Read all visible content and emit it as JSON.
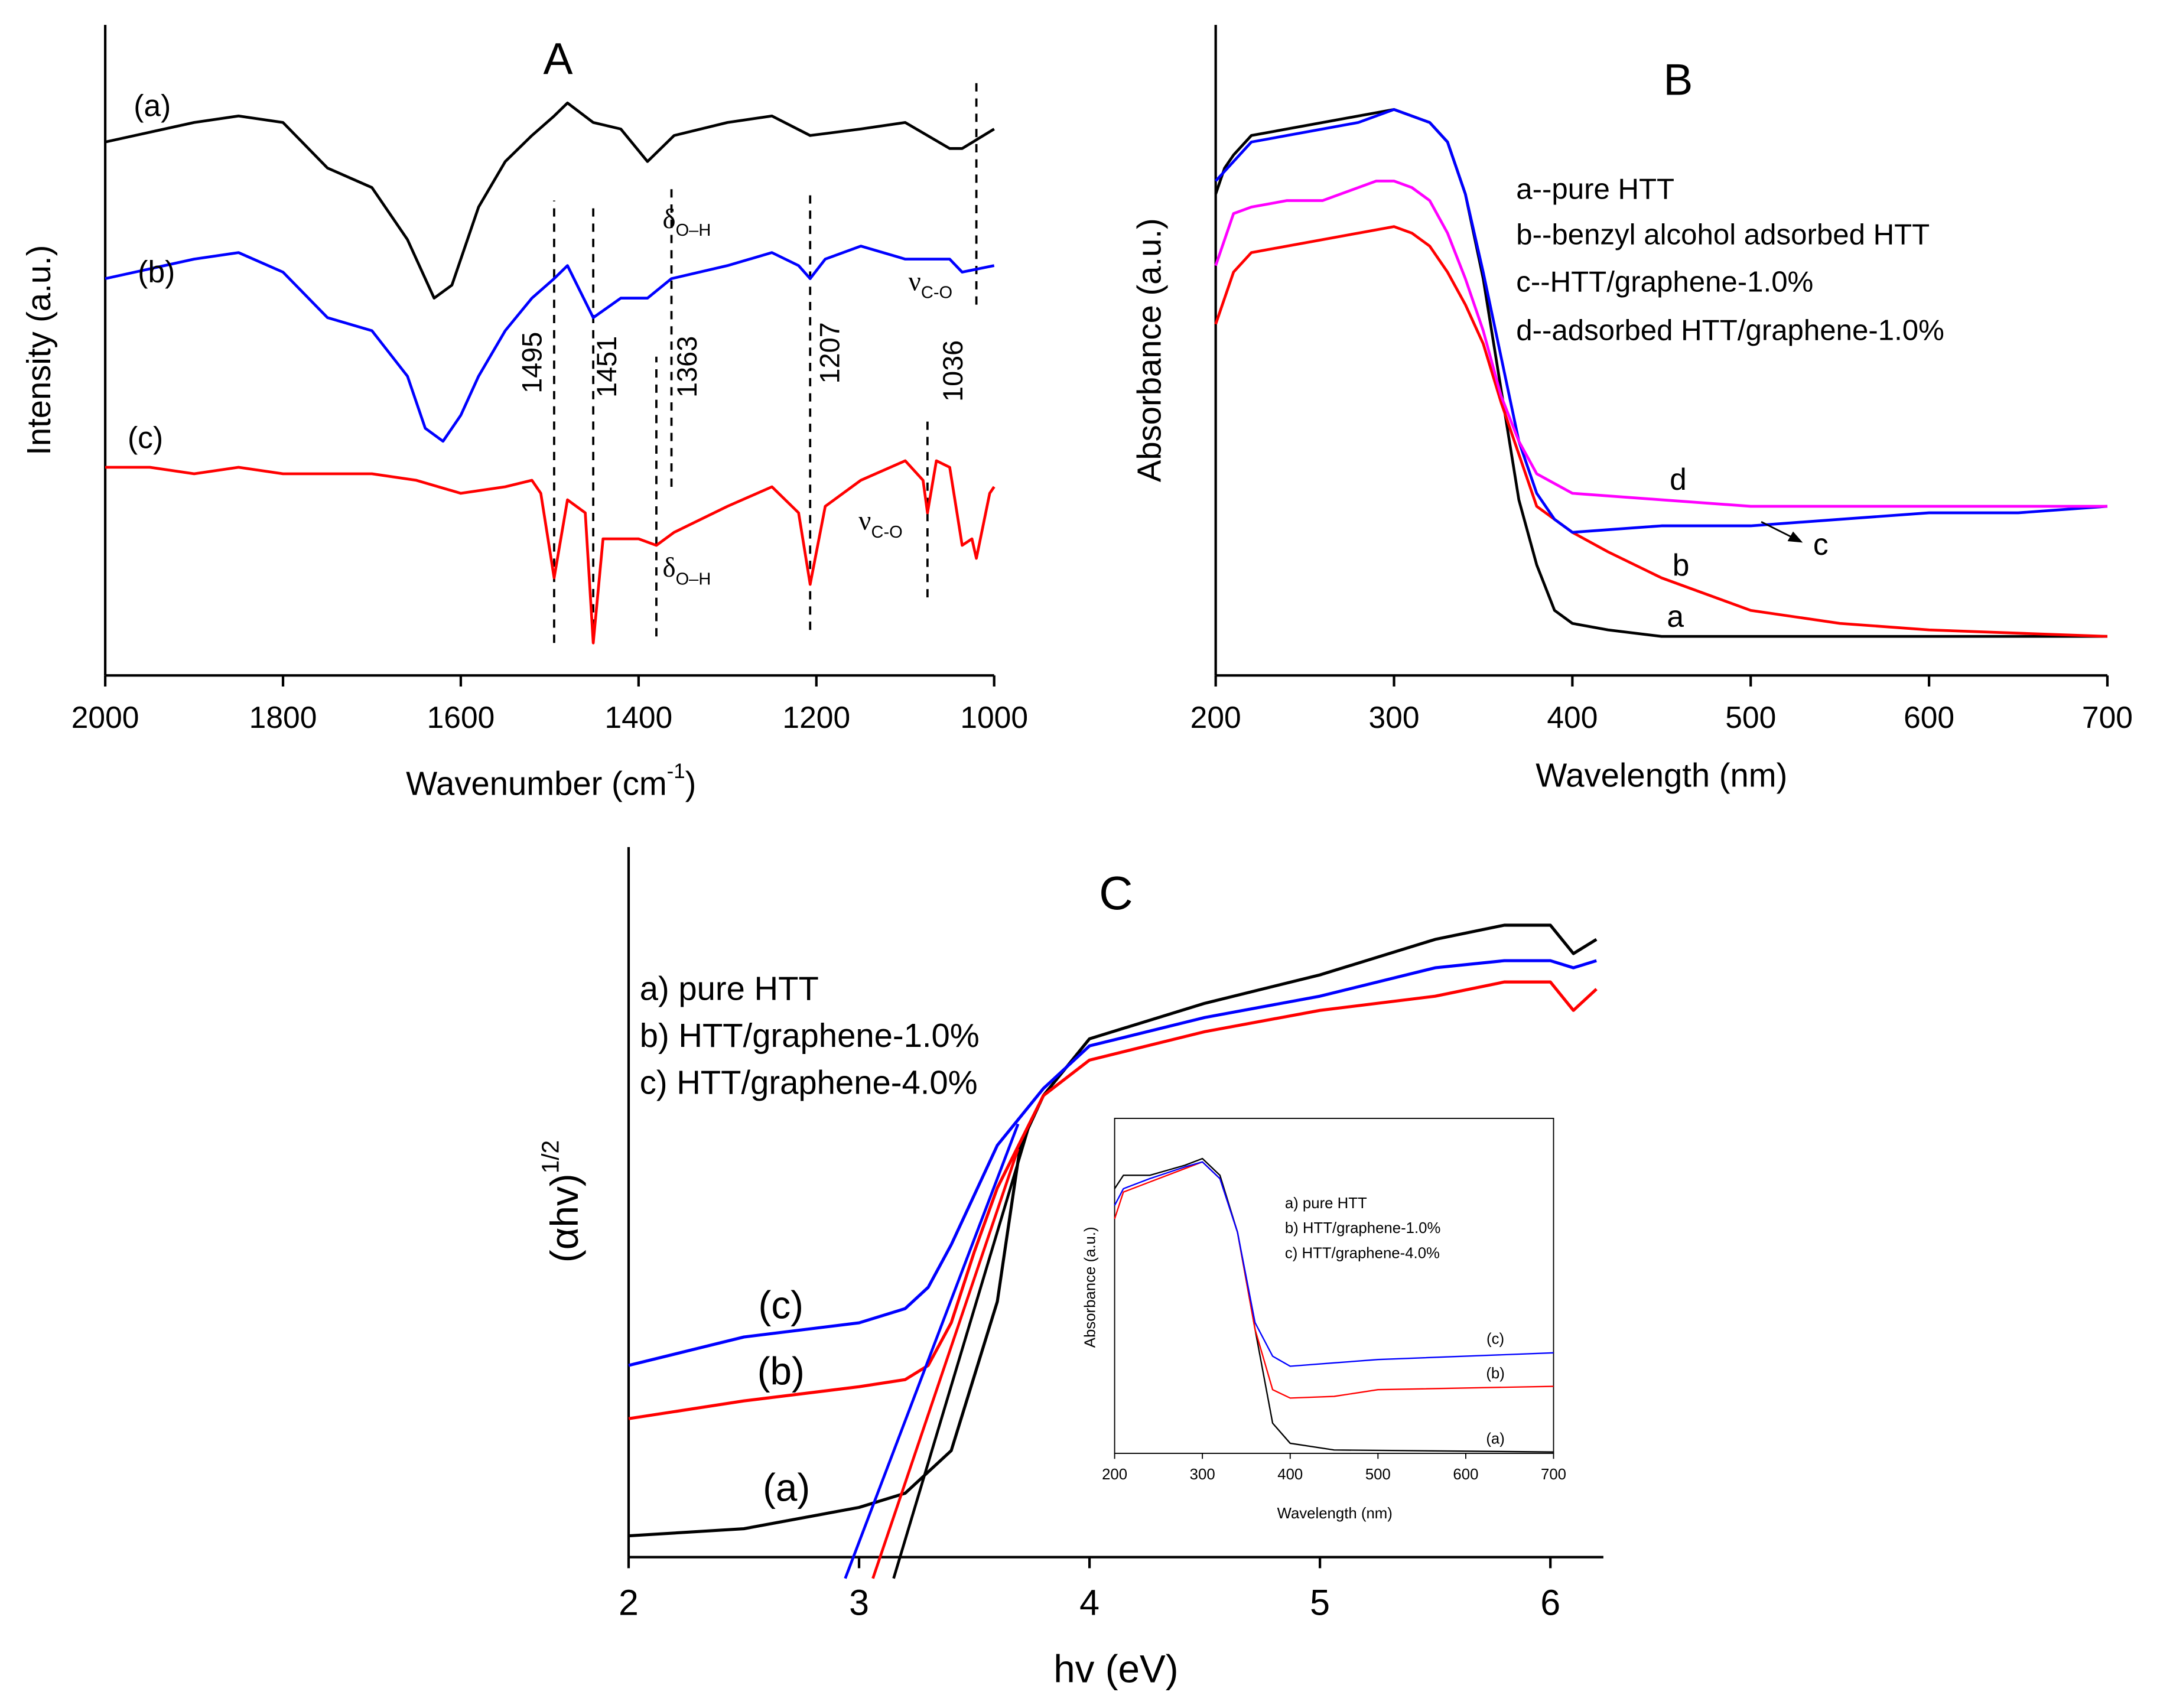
{
  "chart_data": [
    {
      "type": "line",
      "title": "A",
      "x_label": {
        "text": "Wavenumber (cm",
        "sup": "-1",
        "tail": ")"
      },
      "y_label": "Intensity (a.u.)",
      "xlim": [
        2000,
        1000
      ],
      "xticks": [
        2000,
        1800,
        1600,
        1400,
        1200,
        1000
      ],
      "ylim": [
        0,
        100
      ],
      "series": [
        {
          "name": "(a)",
          "color": "#000000",
          "x": [
            2000,
            1900,
            1850,
            1800,
            1750,
            1700,
            1660,
            1630,
            1610,
            1580,
            1550,
            1520,
            1495,
            1480,
            1451,
            1420,
            1390,
            1360,
            1300,
            1250,
            1207,
            1150,
            1100,
            1050,
            1036,
            1000
          ],
          "values": [
            82,
            85,
            86,
            85,
            78,
            75,
            67,
            58,
            60,
            72,
            79,
            83,
            86,
            88,
            85,
            84,
            79,
            83,
            85,
            86,
            83,
            84,
            85,
            81,
            81,
            84
          ]
        },
        {
          "name": "(b)",
          "color": "#0000ff",
          "x": [
            2000,
            1900,
            1850,
            1800,
            1750,
            1700,
            1660,
            1640,
            1620,
            1600,
            1580,
            1550,
            1520,
            1495,
            1480,
            1451,
            1420,
            1390,
            1363,
            1300,
            1250,
            1220,
            1207,
            1190,
            1150,
            1100,
            1050,
            1036,
            1000
          ],
          "values": [
            61,
            64,
            65,
            62,
            55,
            53,
            46,
            38,
            36,
            40,
            46,
            53,
            58,
            61,
            63,
            55,
            58,
            58,
            61,
            63,
            65,
            63,
            61,
            64,
            66,
            64,
            64,
            62,
            63
          ]
        },
        {
          "name": "(c)",
          "color": "#ff0000",
          "x": [
            2000,
            1950,
            1900,
            1850,
            1800,
            1700,
            1650,
            1600,
            1550,
            1520,
            1510,
            1495,
            1480,
            1460,
            1451,
            1440,
            1400,
            1380,
            1360,
            1300,
            1250,
            1220,
            1207,
            1190,
            1150,
            1100,
            1080,
            1075,
            1065,
            1050,
            1036,
            1025,
            1020,
            1005,
            1000
          ],
          "values": [
            32,
            32,
            31,
            32,
            31,
            31,
            30,
            28,
            29,
            30,
            28,
            15,
            27,
            25,
            5,
            21,
            21,
            20,
            22,
            26,
            29,
            25,
            14,
            26,
            30,
            33,
            30,
            25,
            33,
            32,
            20,
            21,
            18,
            28,
            29
          ]
        }
      ],
      "reference_lines": [
        {
          "x": 1495,
          "y": [
            5,
            73
          ]
        },
        {
          "x": 1451,
          "y": [
            5,
            72
          ]
        },
        {
          "x": 1380,
          "y": [
            6,
            49
          ]
        },
        {
          "x": 1363,
          "y": [
            29,
            75
          ]
        },
        {
          "x": 1207,
          "y": [
            7,
            74
          ]
        },
        {
          "x": 1075,
          "y": [
            12,
            40
          ]
        },
        {
          "x": 1020,
          "y": [
            57,
            92
          ]
        }
      ],
      "annotations": [
        {
          "text": "1495"
        },
        {
          "text": "1451"
        },
        {
          "text": "1363"
        },
        {
          "text": "1207"
        },
        {
          "text": "1036"
        },
        {
          "text": "δ",
          "sub": "O–H"
        },
        {
          "text": "ν",
          "sub": "C-O"
        },
        {
          "text": "δ",
          "sub": "O–H"
        },
        {
          "text": "ν",
          "sub": "C-O"
        }
      ]
    },
    {
      "type": "line",
      "title": "B",
      "x_label": "Wavelength (nm)",
      "y_label": "Absorbance (a.u.)",
      "xlim": [
        200,
        700
      ],
      "xticks": [
        200,
        300,
        400,
        500,
        600,
        700
      ],
      "ylim": [
        0,
        100
      ],
      "series": [
        {
          "name": "a--pure HTT",
          "label": "a",
          "color": "#000000",
          "x": [
            200,
            205,
            210,
            220,
            240,
            260,
            280,
            300,
            310,
            320,
            330,
            340,
            350,
            360,
            370,
            380,
            390,
            400,
            420,
            450,
            500,
            600,
            700
          ],
          "values": [
            74,
            78,
            80,
            83,
            84,
            85,
            86,
            87,
            86,
            85,
            82,
            74,
            61,
            44,
            27,
            17,
            10,
            8,
            7,
            6,
            6,
            6,
            6
          ]
        },
        {
          "name": "b--benzyl alcohol adsorbed HTT",
          "label": "b",
          "color": "#ff0000",
          "x": [
            200,
            210,
            220,
            240,
            260,
            280,
            300,
            310,
            320,
            330,
            340,
            350,
            360,
            370,
            380,
            400,
            420,
            450,
            500,
            550,
            600,
            700
          ],
          "values": [
            54,
            62,
            65,
            66,
            67,
            68,
            69,
            68,
            66,
            62,
            57,
            51,
            42,
            34,
            26,
            22,
            19,
            15,
            10,
            8,
            7,
            6
          ]
        },
        {
          "name": "c--HTT/graphene-1.0%",
          "label": "c",
          "color": "#0000ff",
          "x": [
            200,
            210,
            220,
            240,
            260,
            280,
            300,
            310,
            320,
            330,
            340,
            350,
            360,
            370,
            380,
            390,
            400,
            450,
            500,
            550,
            600,
            650,
            700
          ],
          "values": [
            76,
            79,
            82,
            83,
            84,
            85,
            87,
            86,
            85,
            82,
            74,
            62,
            49,
            36,
            28,
            24,
            22,
            23,
            23,
            24,
            25,
            25,
            26
          ]
        },
        {
          "name": "d--adsorbed HTT/graphene-1.0%",
          "label": "d",
          "color": "#ff00ff",
          "x": [
            200,
            210,
            220,
            240,
            260,
            280,
            290,
            300,
            310,
            320,
            330,
            340,
            350,
            360,
            370,
            380,
            400,
            450,
            500,
            600,
            700
          ],
          "values": [
            63,
            71,
            72,
            73,
            73,
            75,
            76,
            76,
            75,
            73,
            68,
            61,
            53,
            43,
            36,
            31,
            28,
            27,
            26,
            26,
            26
          ]
        }
      ]
    },
    {
      "type": "line",
      "title": "C",
      "x_label": "hv (eV)",
      "y_label": {
        "text": "(αhv)",
        "sup": "1/2"
      },
      "xlim": [
        2,
        6.23
      ],
      "xticks": [
        2,
        3,
        4,
        5,
        6
      ],
      "ylim": [
        0,
        100
      ],
      "series": [
        {
          "name": "a) pure HTT",
          "label": "(a)",
          "color": "#000000",
          "x": [
            2,
            2.5,
            3,
            3.2,
            3.4,
            3.6,
            3.7,
            3.8,
            4,
            4.5,
            5,
            5.5,
            5.8,
            6,
            6.1,
            6.2
          ],
          "values": [
            3,
            4,
            7,
            9,
            15,
            36,
            58,
            65,
            73,
            78,
            82,
            87,
            89,
            89,
            85,
            87
          ],
          "fit": {
            "x": [
              3.15,
              3.74
            ],
            "y": [
              -3,
              61
            ]
          }
        },
        {
          "name": "b) HTT/graphene-1.0%",
          "label": "(b)",
          "color": "#ff0000",
          "x": [
            2,
            2.5,
            3,
            3.2,
            3.3,
            3.4,
            3.5,
            3.6,
            3.8,
            4,
            4.5,
            5,
            5.5,
            5.8,
            6,
            6.1,
            6.2
          ],
          "values": [
            19.5,
            22,
            24,
            25,
            27,
            33,
            43,
            52,
            65,
            70,
            74,
            77,
            79,
            81,
            81,
            77,
            80
          ],
          "fit": {
            "x": [
              3.06,
              3.69
            ],
            "y": [
              -3,
              57.5
            ]
          }
        },
        {
          "name": "c) HTT/graphene-4.0%",
          "label": "(c)",
          "color": "#0000ff",
          "x": [
            2,
            2.5,
            3,
            3.2,
            3.3,
            3.4,
            3.5,
            3.6,
            3.8,
            4,
            4.5,
            5,
            5.5,
            5.8,
            6,
            6.1,
            6.2
          ],
          "values": [
            27,
            31,
            33,
            35,
            38,
            44,
            51,
            58,
            66,
            72,
            76,
            79,
            83,
            84,
            84,
            83,
            84
          ],
          "fit": {
            "x": [
              2.94,
              3.69
            ],
            "y": [
              -3,
              61
            ]
          }
        }
      ]
    },
    {
      "type": "line",
      "x_label": "Wavelength (nm)",
      "y_label": "Absorbance (a.u.)",
      "xlim": [
        200,
        700
      ],
      "xticks": [
        200,
        300,
        400,
        500,
        600,
        700
      ],
      "ylim": [
        0,
        100
      ],
      "series": [
        {
          "name": "a) pure HTT",
          "label": "(a)",
          "color": "#000000",
          "x": [
            200,
            210,
            240,
            280,
            300,
            320,
            340,
            360,
            380,
            400,
            450,
            700
          ],
          "values": [
            79,
            83,
            83,
            86,
            88,
            83,
            66,
            37,
            9,
            3,
            1,
            0.4
          ]
        },
        {
          "name": "b) HTT/graphene-1.0%",
          "label": "(b)",
          "color": "#ff0000",
          "x": [
            200,
            210,
            240,
            280,
            300,
            320,
            340,
            360,
            380,
            400,
            450,
            500,
            700
          ],
          "values": [
            70,
            78,
            81,
            85,
            87,
            82,
            66,
            37,
            19,
            16.5,
            17,
            19,
            20
          ]
        },
        {
          "name": "c) HTT/graphene-4.0%",
          "label": "(c)",
          "color": "#0000ff",
          "x": [
            200,
            210,
            240,
            280,
            300,
            320,
            340,
            360,
            380,
            400,
            450,
            500,
            700
          ],
          "values": [
            74,
            79,
            82,
            85.5,
            87,
            82,
            66,
            39,
            29,
            26,
            27,
            28,
            30
          ]
        }
      ]
    }
  ]
}
